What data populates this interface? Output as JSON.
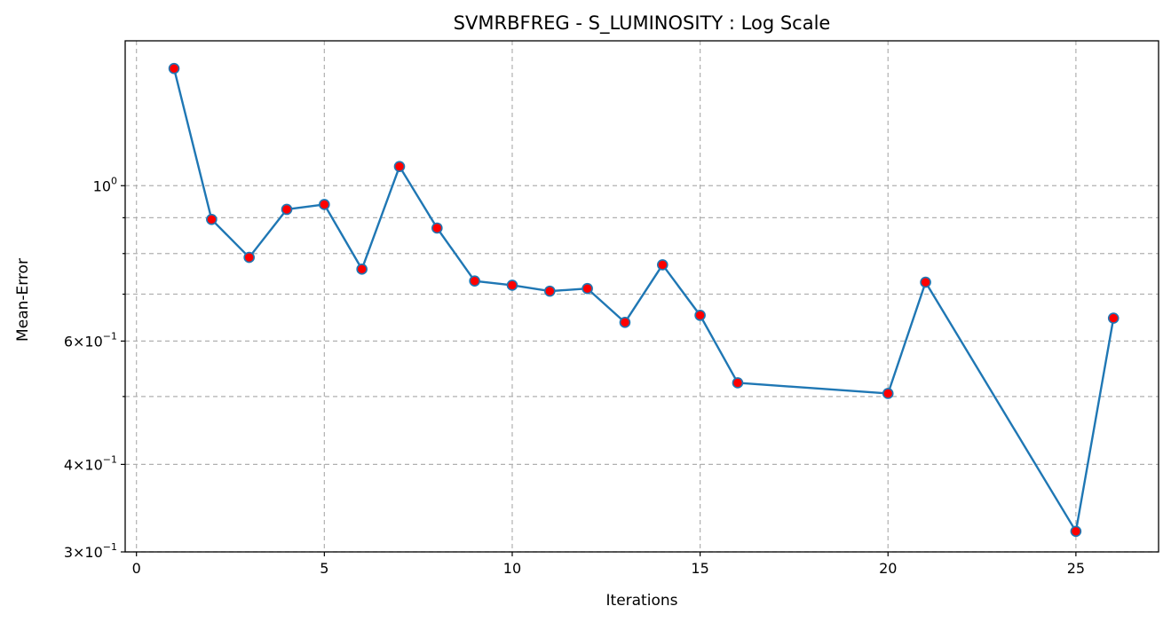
{
  "chart_data": {
    "type": "line",
    "title": "SVMRBFREG - S_LUMINOSITY : Log Scale",
    "xlabel": "Iterations",
    "ylabel": "Mean-Error",
    "yscale": "log",
    "xlim": [
      -0.3,
      27.2
    ],
    "ylim": [
      0.3,
      1.61
    ],
    "xticks": [
      0,
      5,
      10,
      15,
      20,
      25
    ],
    "xtick_labels": [
      "0",
      "5",
      "10",
      "15",
      "20",
      "25"
    ],
    "yticks_major": [
      {
        "value": 0.3,
        "base": "3",
        "exp": "−1"
      },
      {
        "value": 0.4,
        "base": "4",
        "exp": "−1"
      },
      {
        "value": 0.6,
        "base": "6",
        "exp": "−1"
      },
      {
        "value": 1.0,
        "base": "",
        "exp": "0"
      }
    ],
    "yticks_minor": [
      0.5,
      0.7,
      0.8,
      0.9
    ],
    "grid": true,
    "series": [
      {
        "line_color": "#1f77b4",
        "marker_color": "#ff0000",
        "marker_edge": "#1f77b4",
        "x": [
          1,
          2,
          3,
          4,
          5,
          6,
          7,
          8,
          9,
          10,
          11,
          12,
          13,
          14,
          15,
          16,
          20,
          21,
          25,
          26
        ],
        "values": [
          1.47,
          0.895,
          0.79,
          0.925,
          0.94,
          0.76,
          1.065,
          0.87,
          0.731,
          0.721,
          0.707,
          0.713,
          0.638,
          0.771,
          0.653,
          0.523,
          0.505,
          0.728,
          0.321,
          0.647
        ]
      }
    ]
  }
}
